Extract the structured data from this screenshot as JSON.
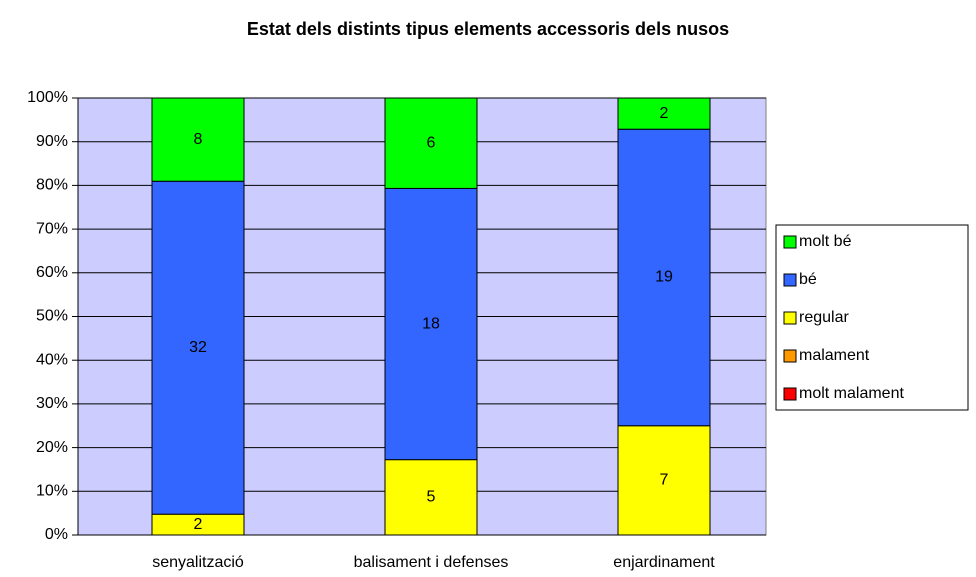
{
  "chart_data": {
    "type": "stacked_bar",
    "stacking": "percent",
    "title": "Estat dels distints tipus elements accessoris dels nusos",
    "categories": [
      "senyalització",
      "balisament i defenses",
      "enjardinament"
    ],
    "series": [
      {
        "name": "molt malament",
        "color": "#ff0000",
        "values": [
          0,
          0,
          0
        ]
      },
      {
        "name": "malament",
        "color": "#ff9900",
        "values": [
          0,
          0,
          0
        ]
      },
      {
        "name": "regular",
        "color": "#ffff00",
        "values": [
          2,
          5,
          7
        ]
      },
      {
        "name": "bé",
        "color": "#3366ff",
        "values": [
          32,
          18,
          19
        ]
      },
      {
        "name": "molt bé",
        "color": "#00ff00",
        "values": [
          8,
          6,
          2
        ]
      }
    ],
    "ylim": [
      0,
      100
    ],
    "yticks": [
      {
        "value": 0,
        "label": "0%"
      },
      {
        "value": 10,
        "label": "10%"
      },
      {
        "value": 20,
        "label": "20%"
      },
      {
        "value": 30,
        "label": "30%"
      },
      {
        "value": 40,
        "label": "40%"
      },
      {
        "value": 50,
        "label": "50%"
      },
      {
        "value": 60,
        "label": "60%"
      },
      {
        "value": 70,
        "label": "70%"
      },
      {
        "value": 80,
        "label": "80%"
      },
      {
        "value": 90,
        "label": "90%"
      },
      {
        "value": 100,
        "label": "100%"
      }
    ],
    "grid": true,
    "legend": "right",
    "plot_background": "#ccccff"
  }
}
